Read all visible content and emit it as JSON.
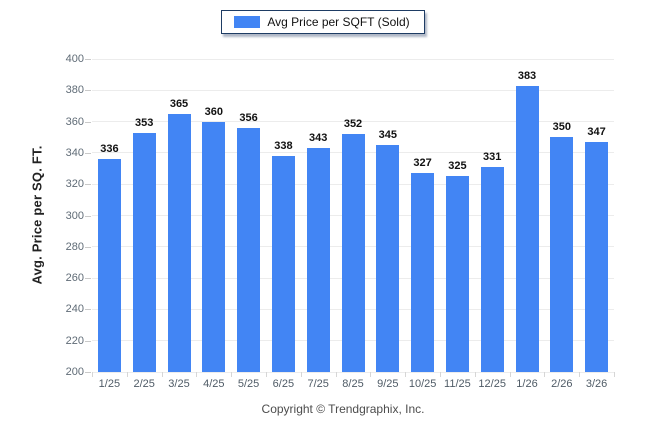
{
  "legend": {
    "label": "Avg Price per SQFT (Sold)",
    "swatch_color": "#4285f4"
  },
  "footer": {
    "copyright": "Copyright © Trendgraphix, Inc."
  },
  "chart_data": {
    "type": "bar",
    "title": "",
    "xlabel": "",
    "ylabel": "Avg. Price per SQ. FT.",
    "categories": [
      "1/25",
      "2/25",
      "3/25",
      "4/25",
      "5/25",
      "6/25",
      "7/25",
      "8/25",
      "9/25",
      "10/25",
      "11/25",
      "12/25",
      "1/26",
      "2/26",
      "3/26"
    ],
    "series": [
      {
        "name": "Avg Price per SQFT (Sold)",
        "values": [
          336,
          353,
          365,
          360,
          356,
          338,
          343,
          352,
          345,
          327,
          325,
          331,
          383,
          350,
          347
        ],
        "color": "#4285f4"
      }
    ],
    "ylim": [
      200,
      400
    ],
    "ytick_step": 20,
    "grid": "horizontal",
    "value_labels": "above-bars",
    "legend_position": "top-center"
  }
}
